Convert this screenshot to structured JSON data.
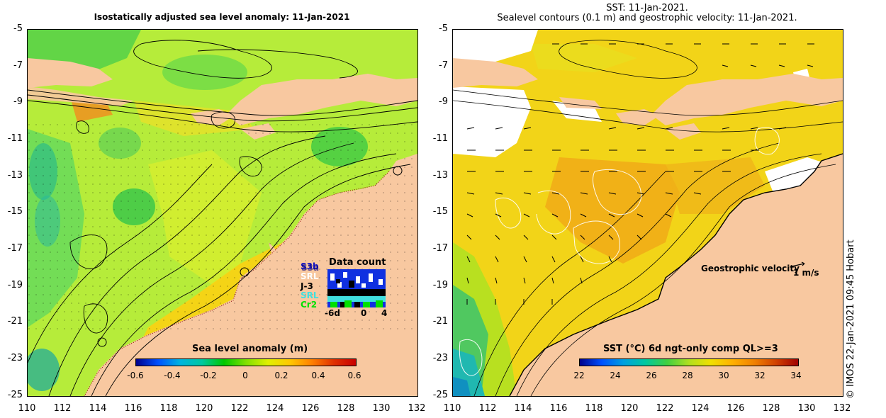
{
  "left_panel": {
    "title": "Isostatically adjusted sea level anomaly: 11-Jan-2021",
    "colorbar": {
      "title": "Sea level anomaly (m)",
      "ticks": [
        "-0.6",
        "-0.4",
        "-0.2",
        "0",
        "0.2",
        "0.4",
        "0.6"
      ],
      "range": [
        -0.6,
        0.6
      ]
    },
    "data_count": {
      "title": "Data count",
      "missions": [
        {
          "name": "S3b",
          "color": "#1010c0"
        },
        {
          "name": "S3a",
          "color": "#000080"
        },
        {
          "name": "SRL",
          "color": "#ffffff"
        },
        {
          "name": "J-3",
          "color": "#000000"
        },
        {
          "name": "SRL",
          "color": "#40e0e0"
        },
        {
          "name": "Cr2",
          "color": "#00e000"
        }
      ],
      "axis_ticks": [
        "-6d",
        "0",
        "4"
      ]
    }
  },
  "right_panel": {
    "title_line1": "SST: 11-Jan-2021.",
    "title_line2": "Sealevel contours (0.1 m) and geostrophic velocity: 11-Jan-2021.",
    "colorbar": {
      "title": "SST (°C) 6d ngt-only comp QL>=3",
      "ticks": [
        "22",
        "24",
        "26",
        "28",
        "30",
        "32",
        "34"
      ],
      "range": [
        22,
        34
      ]
    },
    "velocity_label": "Geostrophic velocity",
    "velocity_scale": "1 m/s"
  },
  "axes": {
    "lat_ticks": [
      "-5",
      "-7",
      "-9",
      "-11",
      "-13",
      "-15",
      "-17",
      "-19",
      "-21",
      "-23",
      "-25"
    ],
    "lon_ticks": [
      "110",
      "112",
      "114",
      "116",
      "118",
      "120",
      "122",
      "124",
      "126",
      "128",
      "130",
      "132"
    ],
    "lat_range": [
      -25,
      -5
    ],
    "lon_range": [
      110,
      132
    ]
  },
  "credit": "© IMOS 22-Jan-2021 09:45 Hobart",
  "colors": {
    "land": "#f8c8a0",
    "sla_ramp": [
      "#00008c",
      "#0070ff",
      "#00c8c8",
      "#00c800",
      "#80e000",
      "#e0f000",
      "#ffc800",
      "#ff8000",
      "#c80000"
    ],
    "sst_ramp": [
      "#00008c",
      "#0064ff",
      "#00c8c8",
      "#00c864",
      "#a0e000",
      "#f0e000",
      "#ffa000",
      "#e06000",
      "#a00000"
    ]
  }
}
